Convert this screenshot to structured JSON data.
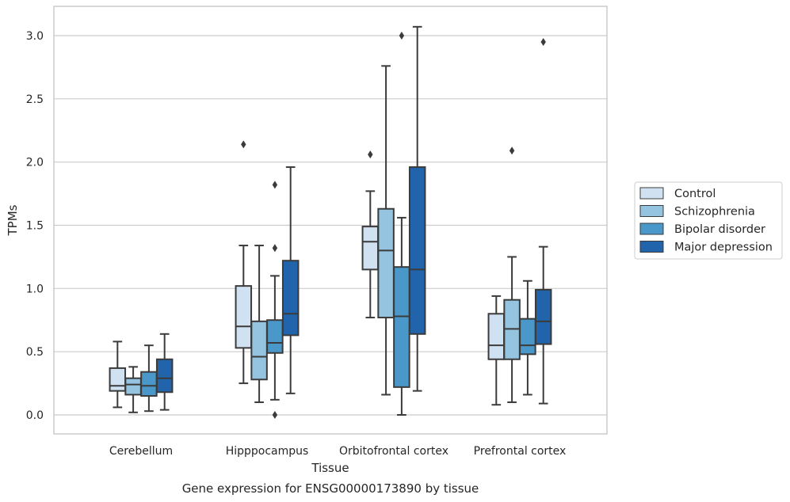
{
  "chart_data": {
    "type": "box",
    "caption": "Gene expression for ENSG00000173890 by tissue",
    "xlabel": "Tissue",
    "ylabel": "TPMs",
    "ylim": [
      -0.15,
      3.23
    ],
    "yticks": [
      0.0,
      0.5,
      1.0,
      1.5,
      2.0,
      2.5,
      3.0
    ],
    "ytick_labels": [
      "0.0",
      "0.5",
      "1.0",
      "1.5",
      "2.0",
      "2.5",
      "3.0"
    ],
    "grid": "horizontal",
    "legend_position": "right",
    "categories": [
      "Cerebellum",
      "Hipppocampus",
      "Orbitofrontal cortex",
      "Prefrontal cortex"
    ],
    "series": [
      {
        "name": "Control",
        "color": "#d0e1f2",
        "boxes": [
          {
            "whislo": 0.06,
            "q1": 0.19,
            "med": 0.23,
            "q3": 0.37,
            "whishi": 0.58,
            "fliers": []
          },
          {
            "whislo": 0.25,
            "q1": 0.53,
            "med": 0.7,
            "q3": 1.02,
            "whishi": 1.34,
            "fliers": [
              2.14
            ]
          },
          {
            "whislo": 0.77,
            "q1": 1.15,
            "med": 1.37,
            "q3": 1.49,
            "whishi": 1.77,
            "fliers": [
              2.06
            ]
          },
          {
            "whislo": 0.08,
            "q1": 0.44,
            "med": 0.55,
            "q3": 0.8,
            "whishi": 0.94,
            "fliers": []
          }
        ]
      },
      {
        "name": "Schizophrenia",
        "color": "#94c4df",
        "boxes": [
          {
            "whislo": 0.02,
            "q1": 0.16,
            "med": 0.24,
            "q3": 0.29,
            "whishi": 0.38,
            "fliers": []
          },
          {
            "whislo": 0.1,
            "q1": 0.28,
            "med": 0.46,
            "q3": 0.74,
            "whishi": 1.34,
            "fliers": []
          },
          {
            "whislo": 0.16,
            "q1": 0.77,
            "med": 1.3,
            "q3": 1.63,
            "whishi": 2.76,
            "fliers": []
          },
          {
            "whislo": 0.1,
            "q1": 0.44,
            "med": 0.68,
            "q3": 0.91,
            "whishi": 1.25,
            "fliers": [
              2.09
            ]
          }
        ]
      },
      {
        "name": "Bipolar disorder",
        "color": "#4a98c9",
        "boxes": [
          {
            "whislo": 0.03,
            "q1": 0.15,
            "med": 0.23,
            "q3": 0.34,
            "whishi": 0.55,
            "fliers": []
          },
          {
            "whislo": 0.12,
            "q1": 0.49,
            "med": 0.57,
            "q3": 0.75,
            "whishi": 1.1,
            "fliers": [
              0.0,
              1.32,
              1.82
            ]
          },
          {
            "whislo": 0.0,
            "q1": 0.22,
            "med": 0.78,
            "q3": 1.17,
            "whishi": 1.56,
            "fliers": [
              3.0
            ]
          },
          {
            "whislo": 0.16,
            "q1": 0.48,
            "med": 0.55,
            "q3": 0.76,
            "whishi": 1.06,
            "fliers": []
          }
        ]
      },
      {
        "name": "Major depression",
        "color": "#2164ab",
        "boxes": [
          {
            "whislo": 0.04,
            "q1": 0.18,
            "med": 0.29,
            "q3": 0.44,
            "whishi": 0.64,
            "fliers": []
          },
          {
            "whislo": 0.17,
            "q1": 0.63,
            "med": 0.8,
            "q3": 1.22,
            "whishi": 1.96,
            "fliers": []
          },
          {
            "whislo": 0.19,
            "q1": 0.64,
            "med": 1.15,
            "q3": 1.96,
            "whishi": 3.07,
            "fliers": []
          },
          {
            "whislo": 0.09,
            "q1": 0.56,
            "med": 0.74,
            "q3": 0.99,
            "whishi": 1.33,
            "fliers": [
              2.95
            ]
          }
        ]
      }
    ]
  }
}
